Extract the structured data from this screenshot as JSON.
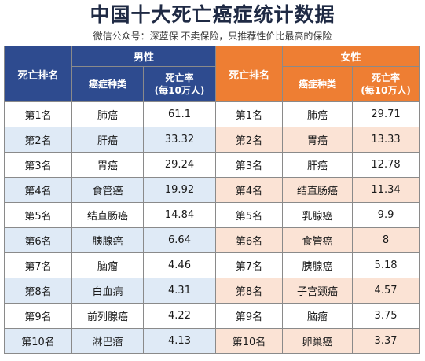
{
  "title": "中国十大死亡癌症统计数据",
  "subtitle": "微信公众号：深蓝保   不卖保险，只推荐性价比最高的保险",
  "header": {
    "male_group": "男性",
    "female_group": "女性",
    "rank": "死亡排名",
    "cancer_type": "癌症种类",
    "rate_line1": "死亡率",
    "rate_line2": "(每10万人)"
  },
  "rows": [
    {
      "rank": "第1名",
      "male_cancer": "肺癌",
      "male_rate": "61.1",
      "female_rank": "第1名",
      "female_cancer": "肺癌",
      "female_rate": "29.71"
    },
    {
      "rank": "第2名",
      "male_cancer": "肝癌",
      "male_rate": "33.32",
      "female_rank": "第2名",
      "female_cancer": "胃癌",
      "female_rate": "13.33"
    },
    {
      "rank": "第3名",
      "male_cancer": "胃癌",
      "male_rate": "29.24",
      "female_rank": "第3名",
      "female_cancer": "肝癌",
      "female_rate": "12.78"
    },
    {
      "rank": "第4名",
      "male_cancer": "食管癌",
      "male_rate": "19.92",
      "female_rank": "第4名",
      "female_cancer": "结直肠癌",
      "female_rate": "11.34"
    },
    {
      "rank": "第5名",
      "male_cancer": "结直肠癌",
      "male_rate": "14.84",
      "female_rank": "第5名",
      "female_cancer": "乳腺癌",
      "female_rate": "9.9"
    },
    {
      "rank": "第6名",
      "male_cancer": "胰腺癌",
      "male_rate": "6.64",
      "female_rank": "第6名",
      "female_cancer": "食管癌",
      "female_rate": "8"
    },
    {
      "rank": "第7名",
      "male_cancer": "脑瘤",
      "male_rate": "4.46",
      "female_rank": "第7名",
      "female_cancer": "胰腺癌",
      "female_rate": "5.18"
    },
    {
      "rank": "第8名",
      "male_cancer": "白血病",
      "male_rate": "4.31",
      "female_rank": "第8名",
      "female_cancer": "子宫颈癌",
      "female_rate": "4.57"
    },
    {
      "rank": "第9名",
      "male_cancer": "前列腺癌",
      "male_rate": "4.22",
      "female_rank": "第9名",
      "female_cancer": "脑瘤",
      "female_rate": "3.75"
    },
    {
      "rank": "第10名",
      "male_cancer": "淋巴瘤",
      "male_rate": "4.13",
      "female_rank": "第10名",
      "female_cancer": "卵巢癌",
      "female_rate": "3.37"
    }
  ]
}
